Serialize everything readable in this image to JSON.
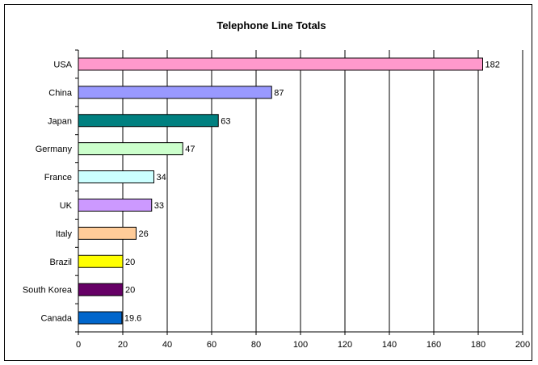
{
  "chart_data": {
    "type": "bar",
    "orientation": "horizontal",
    "title": "Telephone Line Totals",
    "xlabel": "",
    "ylabel": "",
    "categories": [
      "USA",
      "China",
      "Japan",
      "Germany",
      "France",
      "UK",
      "Italy",
      "Brazil",
      "South Korea",
      "Canada"
    ],
    "values": [
      182,
      87,
      63,
      47,
      34,
      33,
      26,
      20,
      20,
      19.6
    ],
    "data_labels": [
      "182",
      "87",
      "63",
      "47",
      "34",
      "33",
      "26",
      "20",
      "20",
      "19.6"
    ],
    "colors": [
      "#ff99cc",
      "#9999ff",
      "#008080",
      "#ccffcc",
      "#ccffff",
      "#cc99ff",
      "#ffcc99",
      "#ffff00",
      "#660066",
      "#0066cc"
    ],
    "xlim": [
      0,
      200
    ],
    "xticks": [
      0,
      20,
      40,
      60,
      80,
      100,
      120,
      140,
      160,
      180,
      200
    ],
    "grid": true,
    "legend": "none"
  }
}
